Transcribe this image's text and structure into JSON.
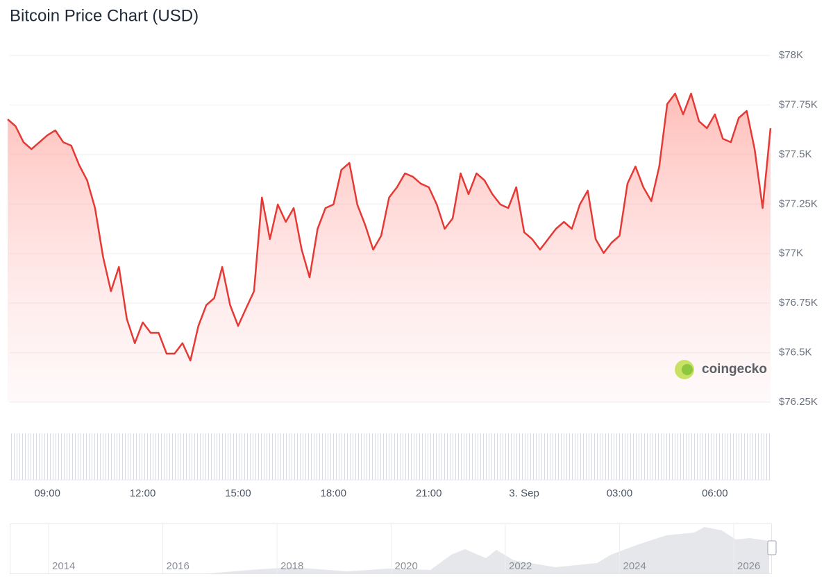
{
  "chart_data": {
    "type": "line",
    "title": "Bitcoin Price Chart (USD)",
    "color": "#e53935",
    "categories": [
      null,
      null,
      null,
      null,
      null,
      "09:00",
      null,
      null,
      null,
      null,
      null,
      null,
      null,
      null,
      null,
      null,
      null,
      "12:00",
      null,
      null,
      null,
      null,
      null,
      null,
      null,
      null,
      null,
      null,
      null,
      "15:00",
      null,
      null,
      null,
      null,
      null,
      null,
      null,
      null,
      null,
      null,
      null,
      "18:00",
      null,
      null,
      null,
      null,
      null,
      null,
      null,
      null,
      null,
      null,
      null,
      "21:00",
      null,
      null,
      null,
      null,
      null,
      null,
      null,
      null,
      null,
      null,
      null,
      "3. Sep",
      null,
      null,
      null,
      null,
      null,
      null,
      null,
      null,
      null,
      null,
      null,
      "03:00",
      null,
      null,
      null,
      null,
      null,
      null,
      null,
      null,
      null,
      null,
      null,
      "06:00",
      null,
      null,
      null,
      null,
      null,
      null,
      null
    ],
    "values": [
      77678,
      77643,
      77562,
      77527,
      77562,
      77597,
      77622,
      77562,
      77545,
      77447,
      77370,
      77230,
      76985,
      76810,
      76933,
      76670,
      76548,
      76653,
      76600,
      76600,
      76495,
      76495,
      76548,
      76460,
      76635,
      76740,
      76775,
      76933,
      76740,
      76635,
      76723,
      76810,
      77283,
      77073,
      77248,
      77160,
      77230,
      77020,
      76880,
      77125,
      77230,
      77248,
      77423,
      77458,
      77248,
      77143,
      77020,
      77090,
      77283,
      77335,
      77405,
      77388,
      77353,
      77335,
      77248,
      77125,
      77178,
      77405,
      77300,
      77405,
      77370,
      77300,
      77248,
      77230,
      77335,
      77108,
      77073,
      77020,
      77073,
      77125,
      77160,
      77125,
      77248,
      77318,
      77073,
      77003,
      77055,
      77090,
      77353,
      77440,
      77335,
      77265,
      77440,
      77755,
      77808,
      77703,
      77808,
      77668,
      77633,
      77703,
      77580,
      77562,
      77685,
      77720,
      77527,
      77230,
      77633
    ],
    "ylim": [
      76250,
      78000
    ],
    "yticks": [
      {
        "value": 76250,
        "label": "$76.25K"
      },
      {
        "value": 76500,
        "label": "$76.5K"
      },
      {
        "value": 76750,
        "label": "$76.75K"
      },
      {
        "value": 77000,
        "label": "$77K"
      },
      {
        "value": 77250,
        "label": "$77.25K"
      },
      {
        "value": 77500,
        "label": "$77.5K"
      },
      {
        "value": 77750,
        "label": "$77.75K"
      },
      {
        "value": 78000,
        "label": "$78K"
      }
    ],
    "grid": true,
    "watermark": "coingecko",
    "navigator": {
      "labels": [
        "2014",
        "2016",
        "2018",
        "2020",
        "2022",
        "2024",
        "2026"
      ]
    }
  }
}
